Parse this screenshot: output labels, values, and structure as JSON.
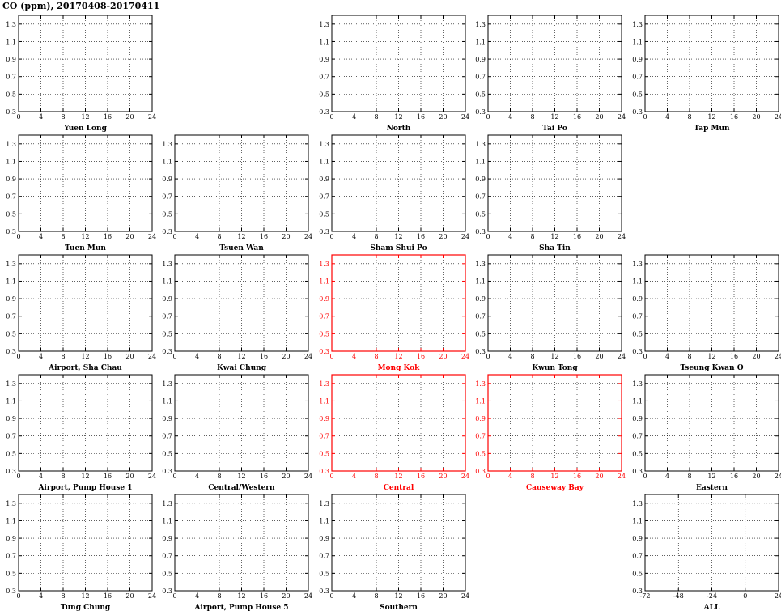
{
  "title": "CO (ppm), 20170408-20170411",
  "colors": {
    "axis_default": "#000000",
    "axis_highlight": "#ff0000",
    "label_default": "#000000",
    "label_highlight": "#ff0000"
  },
  "chart_data": {
    "type": "line",
    "title": "CO (ppm), 20170408-20170411",
    "grid": true,
    "panels": [
      {
        "name": "Yuen Long",
        "row": 0,
        "col": 0,
        "highlight": false
      },
      {
        "name": "North",
        "row": 0,
        "col": 2,
        "highlight": false
      },
      {
        "name": "Tai Po",
        "row": 0,
        "col": 3,
        "highlight": false
      },
      {
        "name": "Tap Mun",
        "row": 0,
        "col": 4,
        "highlight": false
      },
      {
        "name": "Tuen Mun",
        "row": 1,
        "col": 0,
        "highlight": false
      },
      {
        "name": "Tsuen Wan",
        "row": 1,
        "col": 1,
        "highlight": false
      },
      {
        "name": "Sham Shui Po",
        "row": 1,
        "col": 2,
        "highlight": false
      },
      {
        "name": "Sha Tin",
        "row": 1,
        "col": 3,
        "highlight": false
      },
      {
        "name": "Airport, Sha Chau",
        "row": 2,
        "col": 0,
        "highlight": false
      },
      {
        "name": "Kwai Chung",
        "row": 2,
        "col": 1,
        "highlight": false
      },
      {
        "name": "Mong Kok",
        "row": 2,
        "col": 2,
        "highlight": true
      },
      {
        "name": "Kwun Tong",
        "row": 2,
        "col": 3,
        "highlight": false
      },
      {
        "name": "Tseung Kwan O",
        "row": 2,
        "col": 4,
        "highlight": false
      },
      {
        "name": "Airport, Pump House 1",
        "row": 3,
        "col": 0,
        "highlight": false
      },
      {
        "name": "Central/Western",
        "row": 3,
        "col": 1,
        "highlight": false
      },
      {
        "name": "Central",
        "row": 3,
        "col": 2,
        "highlight": true
      },
      {
        "name": "Causeway Bay",
        "row": 3,
        "col": 3,
        "highlight": true
      },
      {
        "name": "Eastern",
        "row": 3,
        "col": 4,
        "highlight": false
      },
      {
        "name": "Tung Chung",
        "row": 4,
        "col": 0,
        "highlight": false
      },
      {
        "name": "Airport, Pump House 5",
        "row": 4,
        "col": 1,
        "highlight": false
      },
      {
        "name": "Southern",
        "row": 4,
        "col": 2,
        "highlight": false
      },
      {
        "name": "ALL",
        "row": 4,
        "col": 4,
        "highlight": false,
        "xrange": [
          -72,
          24
        ],
        "xticks": [
          "-72",
          "-48",
          "-24",
          "0",
          "24"
        ]
      }
    ],
    "ylim": [
      0.3,
      1.4
    ],
    "yticks": [
      "0.3",
      "0.5",
      "0.7",
      "0.9",
      "1.1",
      "1.3"
    ],
    "xrange": [
      0,
      24
    ],
    "xticks": [
      "0",
      "4",
      "8",
      "12",
      "16",
      "20",
      "24"
    ]
  }
}
